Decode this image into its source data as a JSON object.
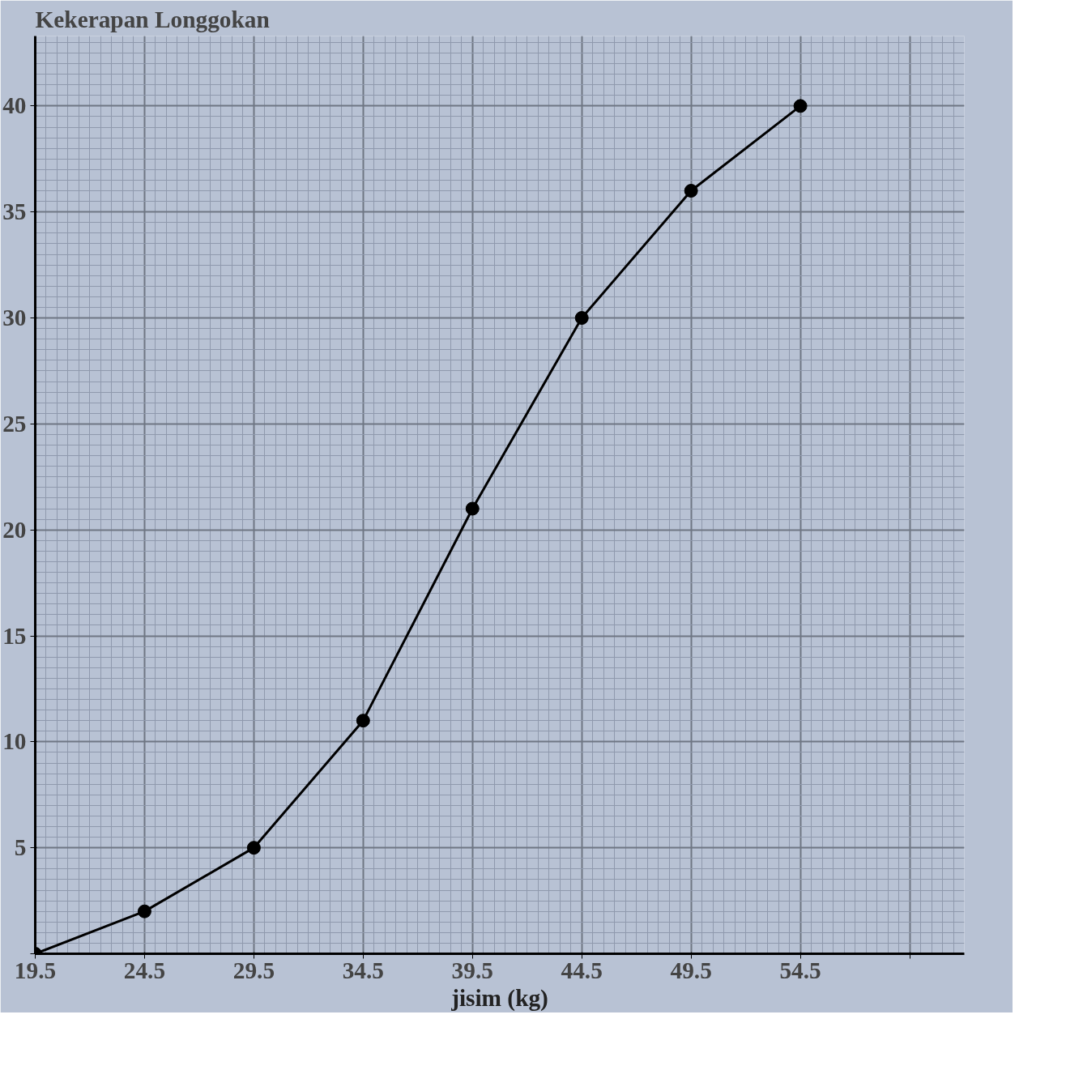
{
  "chart_data": {
    "type": "line",
    "xlabel": "jisim (kg)",
    "ylabel": "Kekerapan Longgokan",
    "x": [
      19.5,
      24.5,
      29.5,
      34.5,
      39.5,
      44.5,
      49.5,
      54.5
    ],
    "series": [
      {
        "color": "#000000",
        "values": [
          0,
          2,
          5,
          11,
          21,
          30,
          36,
          40
        ]
      }
    ],
    "xlim": [
      19.5,
      62
    ],
    "ylim": [
      0,
      43.3
    ],
    "xticks": [
      {
        "value": 19.5,
        "label": "19.5"
      },
      {
        "value": 24.5,
        "label": "24.5"
      },
      {
        "value": 29.5,
        "label": "29.5"
      },
      {
        "value": 34.5,
        "label": "34.5"
      },
      {
        "value": 39.5,
        "label": "39.5"
      },
      {
        "value": 44.5,
        "label": "44.5"
      },
      {
        "value": 49.5,
        "label": "49.5"
      },
      {
        "value": 54.5,
        "label": "54.5"
      },
      {
        "value": 59.5,
        "label": null
      }
    ],
    "yticks": [
      {
        "value": 0,
        "label": null
      },
      5,
      10,
      15,
      20,
      25,
      30,
      35,
      40
    ],
    "grid": true,
    "marker": "circle",
    "line_style": "solid"
  }
}
